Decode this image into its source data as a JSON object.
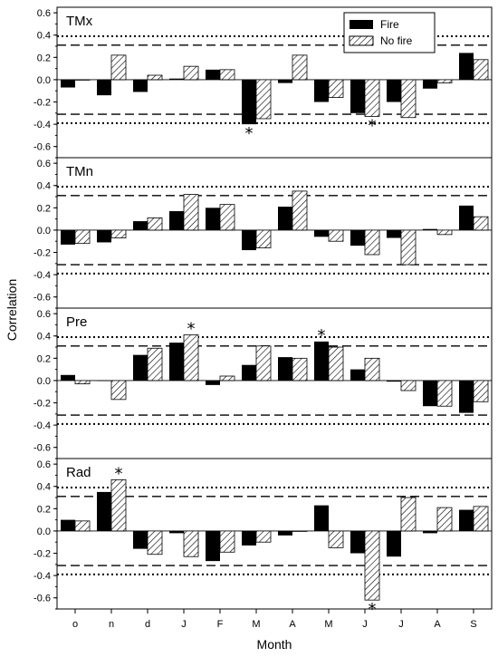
{
  "chart_data": {
    "type": "bar",
    "xlabel": "Month",
    "ylabel": "Correlation",
    "ylim": [
      -0.7,
      0.65
    ],
    "yticks": [
      "-0.6",
      "-0.4",
      "-0.2",
      "0.0",
      "0.2",
      "0.4",
      "0.6"
    ],
    "categories": [
      "o",
      "n",
      "d",
      "J",
      "F",
      "M",
      "A",
      "M",
      "J",
      "J",
      "A",
      "S"
    ],
    "legend": {
      "position": "top-right",
      "entries": [
        "Fire",
        "No fire"
      ]
    },
    "reference_lines": {
      "dotted": [
        0.39,
        -0.39
      ],
      "dashed": [
        0.31,
        -0.31
      ]
    },
    "colors": {
      "fire": "#000000",
      "no_fire_hatch": "#000000",
      "background": "#ffffff"
    },
    "panels": [
      {
        "label": "TMx",
        "series": [
          {
            "name": "Fire",
            "values": [
              -0.07,
              -0.14,
              -0.11,
              0.01,
              0.09,
              -0.4,
              -0.03,
              -0.2,
              -0.3,
              -0.2,
              -0.08,
              0.24
            ]
          },
          {
            "name": "No fire",
            "values": [
              0.0,
              0.22,
              0.04,
              0.12,
              0.09,
              -0.35,
              0.22,
              -0.16,
              -0.33,
              -0.34,
              -0.03,
              0.18
            ]
          }
        ],
        "stars": [
          {
            "index": 5,
            "series": "Fire",
            "side": "below"
          },
          {
            "index": 8,
            "series": "No fire",
            "side": "below"
          }
        ]
      },
      {
        "label": "TMn",
        "series": [
          {
            "name": "Fire",
            "values": [
              -0.13,
              -0.11,
              0.08,
              0.17,
              0.2,
              -0.18,
              0.21,
              -0.06,
              -0.14,
              -0.07,
              0.01,
              0.22
            ]
          },
          {
            "name": "No fire",
            "values": [
              -0.12,
              -0.07,
              0.11,
              0.32,
              0.23,
              -0.16,
              0.35,
              -0.1,
              -0.22,
              -0.31,
              -0.04,
              0.12
            ]
          }
        ],
        "stars": []
      },
      {
        "label": "Pre",
        "series": [
          {
            "name": "Fire",
            "values": [
              0.05,
              0.0,
              0.23,
              0.34,
              -0.04,
              0.14,
              0.21,
              0.35,
              0.1,
              -0.01,
              -0.23,
              -0.29
            ]
          },
          {
            "name": "No fire",
            "values": [
              -0.03,
              -0.17,
              0.29,
              0.41,
              0.04,
              0.31,
              0.2,
              0.3,
              0.2,
              -0.09,
              -0.23,
              -0.19
            ]
          }
        ],
        "stars": [
          {
            "index": 3,
            "series": "No fire",
            "side": "above"
          },
          {
            "index": 7,
            "series": "Fire",
            "side": "above"
          }
        ]
      },
      {
        "label": "Rad",
        "series": [
          {
            "name": "Fire",
            "values": [
              0.1,
              0.35,
              -0.16,
              -0.02,
              -0.27,
              -0.13,
              -0.04,
              0.23,
              -0.2,
              -0.23,
              -0.02,
              0.19
            ]
          },
          {
            "name": "No fire",
            "values": [
              0.09,
              0.46,
              -0.21,
              -0.23,
              -0.19,
              -0.1,
              0.0,
              -0.15,
              -0.62,
              0.3,
              0.21,
              0.22
            ]
          }
        ],
        "stars": [
          {
            "index": 1,
            "series": "No fire",
            "side": "above"
          },
          {
            "index": 8,
            "series": "No fire",
            "side": "below"
          }
        ]
      }
    ]
  },
  "star_symbol": "*"
}
